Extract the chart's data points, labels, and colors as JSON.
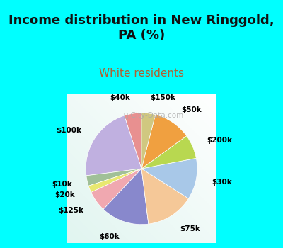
{
  "title": "Income distribution in New Ringgold,\nPA (%)",
  "subtitle": "White residents",
  "title_fontsize": 13,
  "subtitle_fontsize": 11,
  "title_color": "#111111",
  "subtitle_color": "#b06030",
  "bg_color": "#00ffff",
  "chart_bg_color": "#e0f0ea",
  "labels": [
    "$40k",
    "$100k",
    "$10k",
    "$20k",
    "$125k",
    "$60k",
    "$75k",
    "$30k",
    "$200k",
    "$50k",
    "$150k"
  ],
  "values": [
    5,
    22,
    3,
    2,
    6,
    14,
    14,
    12,
    7,
    11,
    4
  ],
  "colors": [
    "#e89090",
    "#c0b0e0",
    "#a0c098",
    "#e8e870",
    "#f0a8b0",
    "#8888cc",
    "#f5c898",
    "#a8c8e8",
    "#b8d850",
    "#f0a040",
    "#d0c880"
  ],
  "startangle": 90,
  "label_distance": 1.28,
  "label_fontsize": 7.5
}
